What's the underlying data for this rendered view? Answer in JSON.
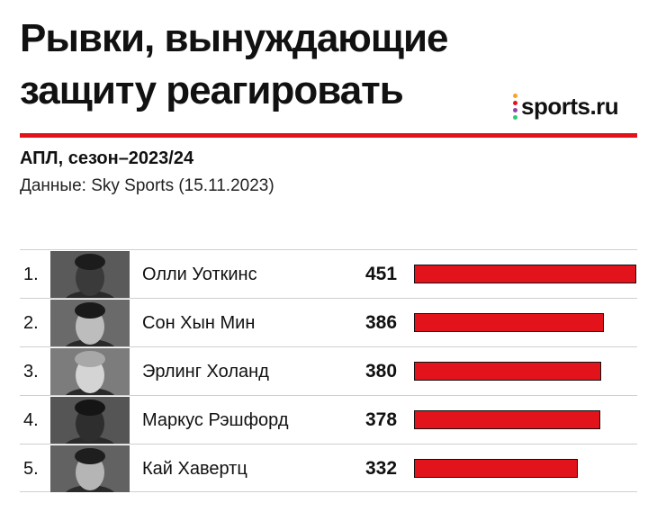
{
  "header": {
    "title": "Рывки, вынуждающие защиту реагировать",
    "subtitle": "АПЛ, сезон–2023/24",
    "source": "Данные: Sky Sports (15.11.2023)",
    "logo_text": "sports.ru",
    "logo_dot_colors": [
      "#f5a623",
      "#e3131b",
      "#8e44ad",
      "#2ecc71"
    ]
  },
  "colors": {
    "accent": "#e3131b",
    "text": "#111111",
    "divider": "#cfcfcf"
  },
  "chart_data": {
    "type": "bar",
    "orientation": "horizontal",
    "title": "Рывки, вынуждающие защиту реагировать",
    "subtitle": "АПЛ, сезон–2023/24",
    "categories": [
      "Олли Уоткинс",
      "Сон Хын Мин",
      "Эрлинг Холанд",
      "Маркус Рэшфорд",
      "Кай Хавертц"
    ],
    "values": [
      451,
      386,
      380,
      378,
      332
    ],
    "xlim": [
      0,
      451
    ],
    "grid": false,
    "legend": "none"
  },
  "rows": [
    {
      "rank": "1.",
      "name": "Олли Уоткинс",
      "value": "451"
    },
    {
      "rank": "2.",
      "name": "Сон Хын Мин",
      "value": "386"
    },
    {
      "rank": "3.",
      "name": "Эрлинг Холанд",
      "value": "380"
    },
    {
      "rank": "4.",
      "name": "Маркус Рэшфорд",
      "value": "378"
    },
    {
      "rank": "5.",
      "name": "Кай Хавертц",
      "value": "332"
    }
  ]
}
